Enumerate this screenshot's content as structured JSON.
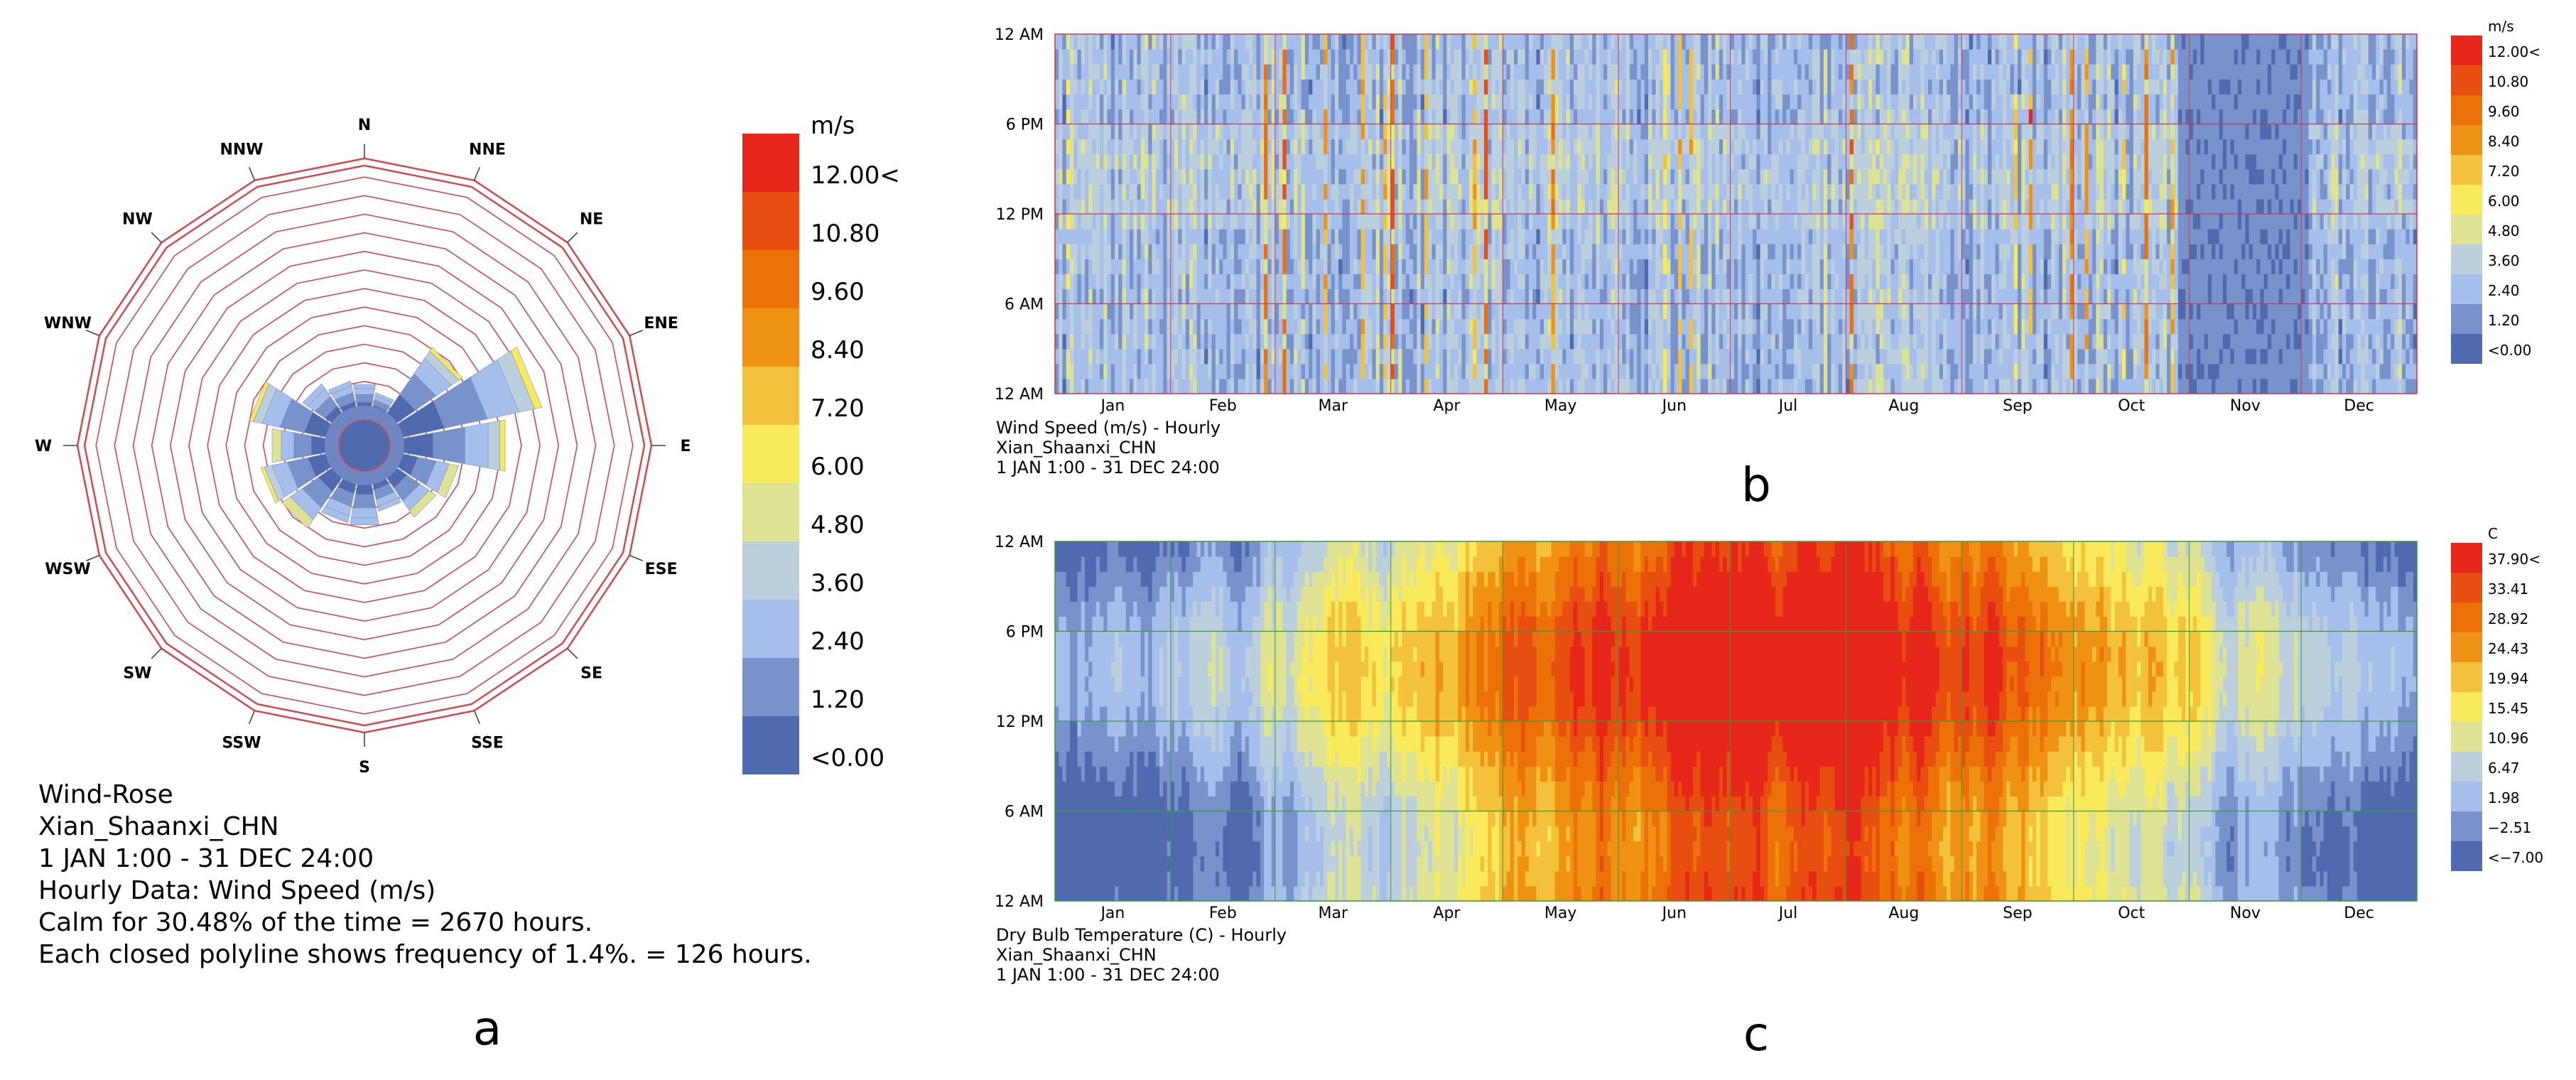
{
  "chart_data": [
    {
      "id": "a",
      "type": "wind-rose",
      "panel_label": "a",
      "directions": [
        "N",
        "NNE",
        "NE",
        "ENE",
        "E",
        "ESE",
        "SE",
        "SSE",
        "S",
        "SSW",
        "SW",
        "WSW",
        "W",
        "WNW",
        "NW",
        "NNW"
      ],
      "frequency_rings_count": 13,
      "ring_step_percent": 1.4,
      "calm_percent": 30.48,
      "petals_percent": [
        2.0,
        1.4,
        6.3,
        11.0,
        8.1,
        4.6,
        3.9,
        2.4,
        3.4,
        3.3,
        4.9,
        5.3,
        4.4,
        6.2,
        3.0,
        2.3
      ],
      "legend": {
        "unit": "m/s",
        "labels": [
          "12.00<",
          "10.80",
          "9.60",
          "8.40",
          "7.20",
          "6.00",
          "4.80",
          "3.60",
          "2.40",
          "1.20",
          "<0.00"
        ],
        "colors": [
          "#e8271b",
          "#e84e0f",
          "#ec7109",
          "#ef9213",
          "#f4c13a",
          "#f8ea5a",
          "#dde393",
          "#bccfdc",
          "#a6bfea",
          "#7892cb",
          "#4f6aae"
        ]
      },
      "caption": [
        "Wind-Rose",
        "Xian_Shaanxi_CHN",
        "1 JAN 1:00 - 31 DEC 24:00",
        "Hourly Data: Wind Speed (m/s)",
        "Calm for 30.48% of the time = 2670 hours.",
        "Each closed polyline shows frequency of 1.4%. = 126 hours."
      ]
    },
    {
      "id": "b",
      "type": "heatmap",
      "panel_label": "b",
      "x_categories": [
        "Jan",
        "Feb",
        "Mar",
        "Apr",
        "May",
        "Jun",
        "Jul",
        "Aug",
        "Sep",
        "Oct",
        "Nov",
        "Dec"
      ],
      "y_ticks": [
        "12 AM",
        "6 PM",
        "12 PM",
        "6 AM",
        "12 AM"
      ],
      "grid_color": "#c43a52",
      "legend": {
        "unit": "m/s",
        "labels": [
          "12.00<",
          "10.80",
          "9.60",
          "8.40",
          "7.20",
          "6.00",
          "4.80",
          "3.60",
          "2.40",
          "1.20",
          "<0.00"
        ],
        "colors": [
          "#e8271b",
          "#e84e0f",
          "#ec7109",
          "#ef9213",
          "#f4c13a",
          "#f8ea5a",
          "#dde393",
          "#bccfdc",
          "#a6bfea",
          "#7892cb",
          "#4f6aae"
        ]
      },
      "caption": [
        "Wind Speed (m/s) - Hourly",
        "Xian_Shaanxi_CHN",
        "1 JAN 1:00 - 31 DEC 24:00"
      ]
    },
    {
      "id": "c",
      "type": "heatmap",
      "panel_label": "c",
      "x_categories": [
        "Jan",
        "Feb",
        "Mar",
        "Apr",
        "May",
        "Jun",
        "Jul",
        "Aug",
        "Sep",
        "Oct",
        "Nov",
        "Dec"
      ],
      "y_ticks": [
        "12 AM",
        "6 PM",
        "12 PM",
        "6 AM",
        "12 AM"
      ],
      "grid_color": "#3a9a3a",
      "legend": {
        "unit": "C",
        "labels": [
          "37.90<",
          "33.41",
          "28.92",
          "24.43",
          "19.94",
          "15.45",
          "10.96",
          "6.47",
          "1.98",
          "−2.51",
          "<−7.00"
        ],
        "colors": [
          "#e8271b",
          "#e84e0f",
          "#ec7109",
          "#ef9213",
          "#f4c13a",
          "#f8ea5a",
          "#dde393",
          "#bccfdc",
          "#a6bfea",
          "#7892cb",
          "#4f6aae"
        ]
      },
      "caption": [
        "Dry Bulb Temperature (C) - Hourly",
        "Xian_Shaanxi_CHN",
        "1 JAN 1:00 - 31 DEC 24:00"
      ]
    }
  ]
}
